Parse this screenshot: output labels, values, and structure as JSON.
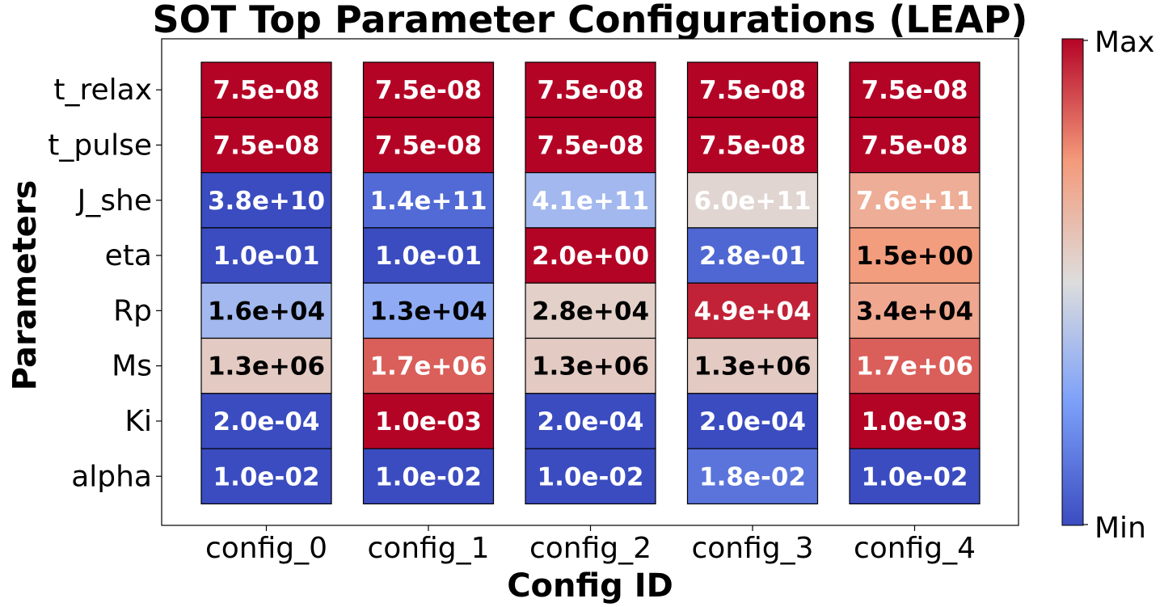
{
  "chart_data": {
    "type": "heatmap",
    "title": "SOT Top Parameter Configurations (LEAP)",
    "xlabel": "Config ID",
    "ylabel": "Parameters",
    "x_categories": [
      "config_0",
      "config_1",
      "config_2",
      "config_3",
      "config_4"
    ],
    "y_categories": [
      "t_relax",
      "t_pulse",
      "J_she",
      "eta",
      "Rp",
      "Ms",
      "Ki",
      "alpha"
    ],
    "cell_labels": [
      [
        "7.5e-08",
        "7.5e-08",
        "7.5e-08",
        "7.5e-08",
        "7.5e-08"
      ],
      [
        "7.5e-08",
        "7.5e-08",
        "7.5e-08",
        "7.5e-08",
        "7.5e-08"
      ],
      [
        "3.8e+10",
        "1.4e+11",
        "4.1e+11",
        "6.0e+11",
        "7.6e+11"
      ],
      [
        "1.0e-01",
        "1.0e-01",
        "2.0e+00",
        "2.8e-01",
        "1.5e+00"
      ],
      [
        "1.6e+04",
        "1.3e+04",
        "2.8e+04",
        "4.9e+04",
        "3.4e+04"
      ],
      [
        "1.3e+06",
        "1.7e+06",
        "1.3e+06",
        "1.3e+06",
        "1.7e+06"
      ],
      [
        "2.0e-04",
        "1.0e-03",
        "2.0e-04",
        "2.0e-04",
        "1.0e-03"
      ],
      [
        "1.0e-02",
        "1.0e-02",
        "1.0e-02",
        "1.8e-02",
        "1.0e-02"
      ]
    ],
    "normalized_values": [
      [
        1.0,
        1.0,
        1.0,
        1.0,
        1.0
      ],
      [
        1.0,
        1.0,
        1.0,
        1.0,
        1.0
      ],
      [
        0.0,
        0.09,
        0.35,
        0.53,
        0.68
      ],
      [
        0.0,
        0.0,
        1.0,
        0.08,
        0.74
      ],
      [
        0.35,
        0.3,
        0.55,
        0.95,
        0.7
      ],
      [
        0.57,
        0.85,
        0.57,
        0.57,
        0.85
      ],
      [
        0.0,
        1.0,
        0.0,
        0.0,
        1.0
      ],
      [
        0.0,
        0.0,
        0.0,
        0.12,
        0.0
      ]
    ],
    "text_colors": [
      [
        "#ffffff",
        "#ffffff",
        "#ffffff",
        "#ffffff",
        "#ffffff"
      ],
      [
        "#ffffff",
        "#ffffff",
        "#ffffff",
        "#ffffff",
        "#ffffff"
      ],
      [
        "#ffffff",
        "#ffffff",
        "#ffffff",
        "#ffffff",
        "#ffffff"
      ],
      [
        "#ffffff",
        "#ffffff",
        "#ffffff",
        "#ffffff",
        "#000000"
      ],
      [
        "#000000",
        "#000000",
        "#000000",
        "#ffffff",
        "#000000"
      ],
      [
        "#000000",
        "#ffffff",
        "#000000",
        "#000000",
        "#ffffff"
      ],
      [
        "#ffffff",
        "#ffffff",
        "#ffffff",
        "#ffffff",
        "#ffffff"
      ],
      [
        "#ffffff",
        "#ffffff",
        "#ffffff",
        "#ffffff",
        "#ffffff"
      ]
    ],
    "colormap": "coolwarm",
    "colorbar": {
      "max_label": "Max",
      "min_label": "Min"
    }
  }
}
